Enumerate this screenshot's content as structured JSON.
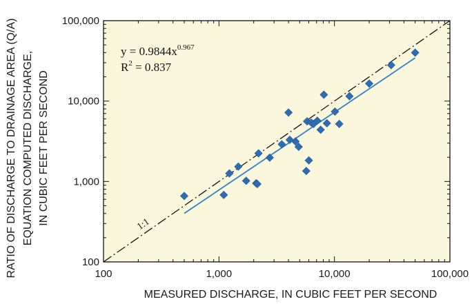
{
  "chart_data": {
    "type": "scatter",
    "title": "",
    "xlabel": "MEASURED DISCHARGE, IN CUBIC FEET PER SECOND",
    "ylabel_lines": [
      "RATIO OF DISCHARGE TO DRAINAGE AREA (Q/A)",
      "EQUATION COMPUTED DISCHARGE,",
      "IN CUBIC FEET PER SECOND"
    ],
    "x_scale": "log",
    "y_scale": "log",
    "xlim": [
      100,
      100000
    ],
    "ylim": [
      100,
      100000
    ],
    "x_ticks": [
      {
        "value": 100,
        "label": "100"
      },
      {
        "value": 1000,
        "label": "1,000"
      },
      {
        "value": 10000,
        "label": "10,000"
      },
      {
        "value": 100000,
        "label": "100,000"
      }
    ],
    "y_ticks": [
      {
        "value": 100,
        "label": "100"
      },
      {
        "value": 1000,
        "label": "1,000"
      },
      {
        "value": 10000,
        "label": "10,000"
      },
      {
        "value": 100000,
        "label": "100,000"
      }
    ],
    "grid": false,
    "equation": {
      "base": "y = 0.9844x",
      "exponent": "0.967"
    },
    "r_squared": {
      "base": "R",
      "exponent": "2",
      "rest": " = 0.837"
    },
    "one_to_one_label": "1:1",
    "trendline": {
      "a": 0.9844,
      "b": 0.967,
      "x_start": 500,
      "x_end": 50000,
      "r2": 0.837
    },
    "series": [
      {
        "values": [
          [
            500,
            660
          ],
          [
            1100,
            680
          ],
          [
            1230,
            1260
          ],
          [
            1470,
            1530
          ],
          [
            1720,
            1020
          ],
          [
            2100,
            950
          ],
          [
            2150,
            930
          ],
          [
            2200,
            2240
          ],
          [
            2750,
            1980
          ],
          [
            3500,
            2900
          ],
          [
            4000,
            7200
          ],
          [
            4100,
            3300
          ],
          [
            4600,
            3150
          ],
          [
            4900,
            2700
          ],
          [
            5700,
            1350
          ],
          [
            5800,
            5600
          ],
          [
            6000,
            1830
          ],
          [
            6300,
            5400
          ],
          [
            6600,
            5200
          ],
          [
            7100,
            5700
          ],
          [
            7600,
            4400
          ],
          [
            8100,
            12000
          ],
          [
            8600,
            5300
          ],
          [
            10100,
            7400
          ],
          [
            11000,
            5200
          ],
          [
            13500,
            11500
          ],
          [
            20000,
            16500
          ],
          [
            31000,
            28000
          ],
          [
            50000,
            40000
          ]
        ]
      }
    ],
    "colors": {
      "plot_background": "#fbf7dd",
      "marker": "#2e6db1",
      "trendline": "#2f80c7",
      "reference_line": "#111111",
      "axis": "#111111"
    }
  }
}
